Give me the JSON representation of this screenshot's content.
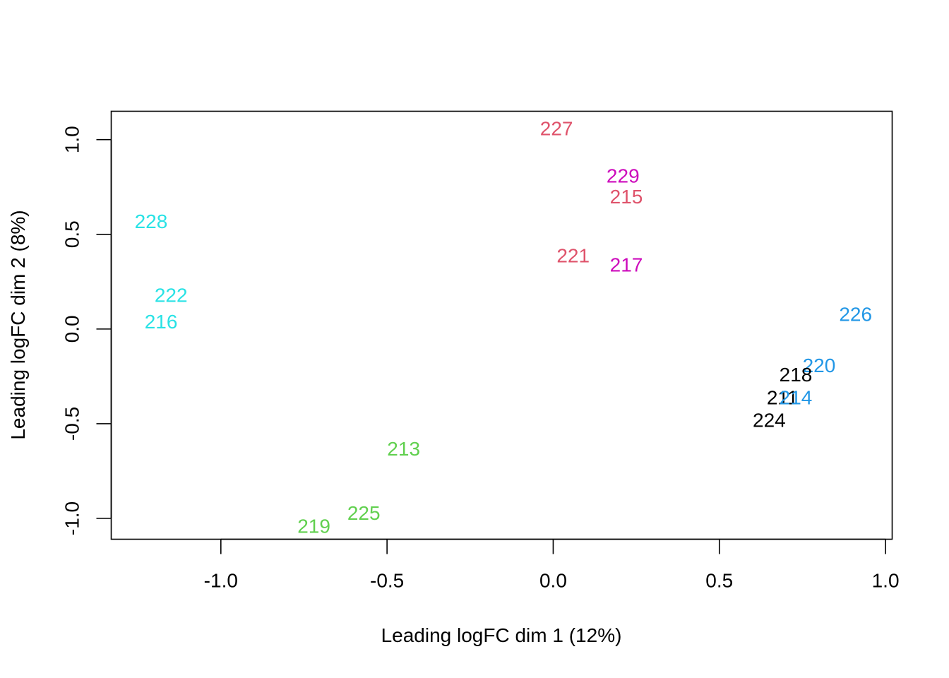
{
  "chart_data": {
    "type": "scatter",
    "title": "",
    "xlabel": "Leading logFC dim 1 (12%)",
    "ylabel": "Leading logFC dim 2 (8%)",
    "xlim": [
      -1.33,
      1.02
    ],
    "ylim": [
      -1.11,
      1.15
    ],
    "x_ticks": [
      -1.0,
      -0.5,
      0.0,
      0.5,
      1.0
    ],
    "x_tick_labels": [
      "-1.0",
      "-0.5",
      "0.0",
      "0.5",
      "1.0"
    ],
    "y_ticks": [
      -1.0,
      -0.5,
      0.0,
      0.5,
      1.0
    ],
    "y_tick_labels": [
      "-1.0",
      "-0.5",
      "0.0",
      "0.5",
      "1.0"
    ],
    "grid": false,
    "colors": {
      "black": "#000000",
      "red": "#DF536B",
      "green": "#61D04F",
      "blue": "#2297E6",
      "cyan": "#28E2E5",
      "magenta": "#CD0BBC"
    },
    "points": [
      {
        "label": "227",
        "x": 0.01,
        "y": 1.06,
        "color": "#DF536B"
      },
      {
        "label": "229",
        "x": 0.21,
        "y": 0.81,
        "color": "#CD0BBC"
      },
      {
        "label": "215",
        "x": 0.22,
        "y": 0.7,
        "color": "#DF536B"
      },
      {
        "label": "228",
        "x": -1.21,
        "y": 0.57,
        "color": "#28E2E5"
      },
      {
        "label": "221",
        "x": 0.06,
        "y": 0.39,
        "color": "#DF536B"
      },
      {
        "label": "217",
        "x": 0.22,
        "y": 0.34,
        "color": "#CD0BBC"
      },
      {
        "label": "222",
        "x": -1.15,
        "y": 0.18,
        "color": "#28E2E5"
      },
      {
        "label": "216",
        "x": -1.18,
        "y": 0.04,
        "color": "#28E2E5"
      },
      {
        "label": "226",
        "x": 0.91,
        "y": 0.08,
        "color": "#2297E6"
      },
      {
        "label": "220",
        "x": 0.8,
        "y": -0.19,
        "color": "#2297E6"
      },
      {
        "label": "218",
        "x": 0.73,
        "y": -0.24,
        "color": "#000000"
      },
      {
        "label": "211",
        "x": 0.69,
        "y": -0.36,
        "color": "#000000"
      },
      {
        "label": "214",
        "x": 0.73,
        "y": -0.36,
        "color": "#2297E6"
      },
      {
        "label": "224",
        "x": 0.65,
        "y": -0.48,
        "color": "#000000"
      },
      {
        "label": "213",
        "x": -0.45,
        "y": -0.63,
        "color": "#61D04F"
      },
      {
        "label": "225",
        "x": -0.57,
        "y": -0.97,
        "color": "#61D04F"
      },
      {
        "label": "219",
        "x": -0.72,
        "y": -1.04,
        "color": "#61D04F"
      }
    ]
  }
}
